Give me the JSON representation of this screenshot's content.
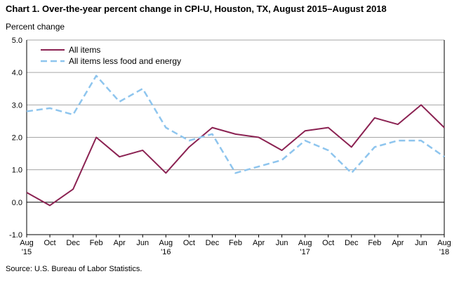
{
  "title": "Chart 1. Over-the-year percent change in CPI-U, Houston, TX, August 2015–August 2018",
  "source": "Source: U.S. Bureau of Labor Statistics.",
  "chart_data": {
    "type": "line",
    "title": "Chart 1. Over-the-year percent change in CPI-U, Houston, TX, August 2015–August 2018",
    "ylabel": "Percent change",
    "xlabel": "",
    "ylim": [
      -1.0,
      5.0
    ],
    "yticks": [
      "5.0",
      "4.0",
      "3.0",
      "2.0",
      "1.0",
      "0.0",
      "-1.0"
    ],
    "categories": [
      "Aug '15",
      "Oct",
      "Dec",
      "Feb",
      "Apr",
      "Jun",
      "Aug '16",
      "Oct",
      "Dec",
      "Feb",
      "Apr",
      "Jun",
      "Aug '17",
      "Oct",
      "Dec",
      "Feb",
      "Apr",
      "Jun",
      "Aug '18"
    ],
    "xticks": [
      {
        "line1": "Aug",
        "line2": "'15"
      },
      {
        "line1": "Oct",
        "line2": ""
      },
      {
        "line1": "Dec",
        "line2": ""
      },
      {
        "line1": "Feb",
        "line2": ""
      },
      {
        "line1": "Apr",
        "line2": ""
      },
      {
        "line1": "Jun",
        "line2": ""
      },
      {
        "line1": "Aug",
        "line2": "'16"
      },
      {
        "line1": "Oct",
        "line2": ""
      },
      {
        "line1": "Dec",
        "line2": ""
      },
      {
        "line1": "Feb",
        "line2": ""
      },
      {
        "line1": "Apr",
        "line2": ""
      },
      {
        "line1": "Jun",
        "line2": ""
      },
      {
        "line1": "Aug",
        "line2": "'17"
      },
      {
        "line1": "Oct",
        "line2": ""
      },
      {
        "line1": "Dec",
        "line2": ""
      },
      {
        "line1": "Feb",
        "line2": ""
      },
      {
        "line1": "Apr",
        "line2": ""
      },
      {
        "line1": "Jun",
        "line2": ""
      },
      {
        "line1": "Aug",
        "line2": "'18"
      }
    ],
    "series": [
      {
        "name": "All items",
        "color": "#8b2252",
        "dashed": false,
        "values": [
          0.3,
          -0.1,
          0.4,
          2.0,
          1.4,
          1.6,
          0.9,
          1.7,
          2.3,
          2.1,
          2.0,
          1.6,
          2.2,
          2.3,
          1.7,
          2.6,
          2.4,
          3.0,
          2.3
        ]
      },
      {
        "name": "All items less food and energy",
        "color": "#8ec5ee",
        "dashed": true,
        "values": [
          2.8,
          2.9,
          2.7,
          3.9,
          3.1,
          3.5,
          2.3,
          1.9,
          2.1,
          0.9,
          1.1,
          1.3,
          1.9,
          1.6,
          0.9,
          1.7,
          1.9,
          1.9,
          1.4
        ]
      }
    ],
    "grid": true,
    "legend_position": "top-left"
  }
}
